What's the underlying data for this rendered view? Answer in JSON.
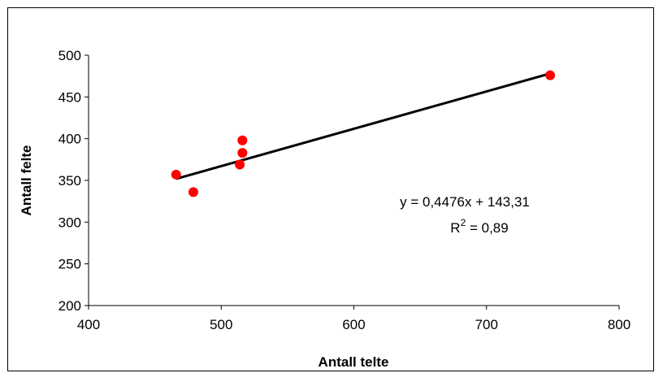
{
  "chart_data": {
    "type": "scatter",
    "title": "",
    "xlabel": "Antall telte",
    "ylabel": "Antall felte",
    "xlim": [
      400,
      800
    ],
    "ylim": [
      200,
      500
    ],
    "x_ticks": [
      400,
      500,
      600,
      700,
      800
    ],
    "y_ticks": [
      200,
      250,
      300,
      350,
      400,
      450,
      500
    ],
    "grid": false,
    "legend": "none",
    "series": [
      {
        "marker_color": "#ff0000",
        "points": [
          {
            "x": 466,
            "y": 357
          },
          {
            "x": 479,
            "y": 336
          },
          {
            "x": 514,
            "y": 369
          },
          {
            "x": 516,
            "y": 398
          },
          {
            "x": 516,
            "y": 383
          },
          {
            "x": 748,
            "y": 476
          }
        ]
      }
    ],
    "trendline": {
      "type": "linear",
      "slope": 0.4476,
      "intercept": 143.31,
      "x_range": [
        466,
        748
      ],
      "color": "#000000",
      "equation_label": "y = 0,4476x + 143,31",
      "r2_prefix": "R",
      "r2_superscript": "2",
      "r2_suffix": " = 0,89"
    }
  }
}
